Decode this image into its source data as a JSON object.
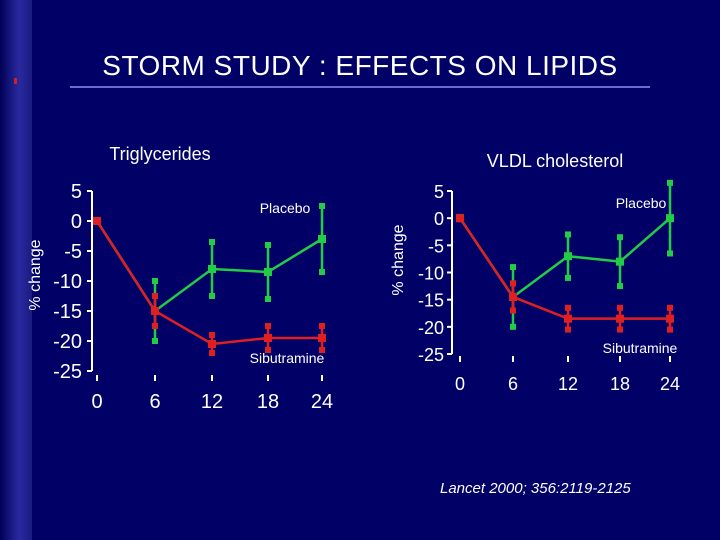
{
  "title": "STORM STUDY : EFFECTS ON LIPIDS",
  "citation": "Lancet 2000; 356:2119-2125",
  "colors": {
    "background": "#000066",
    "placebo": "#22cc44",
    "sibutramine": "#e02020"
  },
  "chart_data": [
    {
      "type": "line",
      "title": "Triglycerides",
      "ylabel": "% change",
      "x": [
        0,
        6,
        12,
        18,
        24
      ],
      "x_ticks": [
        "0",
        "6",
        "12",
        "18",
        "24"
      ],
      "y_ticks": [
        "5",
        "0",
        "-5",
        "-10",
        "-15",
        "-20",
        "-25"
      ],
      "ylim": [
        5,
        -25
      ],
      "series": [
        {
          "name": "Placebo",
          "values": [
            0,
            -15,
            -8,
            -8.5,
            -3
          ],
          "err": [
            null,
            5,
            4.5,
            4.5,
            5.5
          ]
        },
        {
          "name": "Sibutramine",
          "values": [
            0,
            -15,
            -20.5,
            -19.5,
            -19.5
          ],
          "err": [
            null,
            2.5,
            1.5,
            2,
            2
          ]
        }
      ]
    },
    {
      "type": "line",
      "title": "VLDL cholesterol",
      "ylabel": "% change",
      "x": [
        0,
        6,
        12,
        18,
        24
      ],
      "x_ticks": [
        "0",
        "6",
        "12",
        "18",
        "24"
      ],
      "y_ticks": [
        "5",
        "0",
        "-5",
        "-10",
        "-15",
        "-20",
        "-25"
      ],
      "ylim": [
        5,
        -25
      ],
      "series": [
        {
          "name": "Placebo",
          "values": [
            0,
            -14.5,
            -7,
            -8,
            0
          ],
          "err": [
            null,
            5.5,
            4,
            4.5,
            6.5
          ]
        },
        {
          "name": "Sibutramine",
          "values": [
            0,
            -14.5,
            -18.5,
            -18.5,
            -18.5
          ],
          "err": [
            null,
            2.5,
            2,
            2,
            2
          ]
        }
      ]
    }
  ]
}
